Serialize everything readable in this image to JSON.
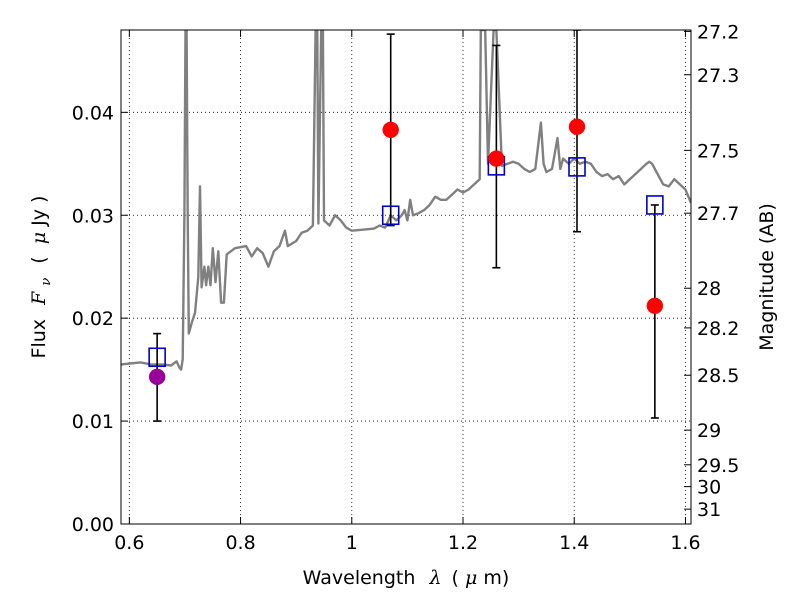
{
  "chart_data": {
    "type": "scatter",
    "xlabel": {
      "text": "Wavelength",
      "symbol": "λ",
      "unit_open": "(",
      "unit_mu": "μ",
      "unit_rest": "m)"
    },
    "ylabel": {
      "text": "Flux",
      "symbol": "F",
      "subscript": "ν",
      "unit_open": "(",
      "unit_mu": "μ",
      "unit_rest": "Jy )"
    },
    "y2label": "Magnitude (AB)",
    "xlim": [
      0.585,
      1.61
    ],
    "ylim": [
      0.0,
      0.048
    ],
    "x_ticks": [
      {
        "value": 0.6,
        "label": "0.6"
      },
      {
        "value": 0.8,
        "label": "0.8"
      },
      {
        "value": 1.0,
        "label": "1"
      },
      {
        "value": 1.2,
        "label": "1.2"
      },
      {
        "value": 1.4,
        "label": "1.4"
      },
      {
        "value": 1.6,
        "label": "1.6"
      }
    ],
    "y_ticks": [
      {
        "value": 0.0,
        "label": "0.00"
      },
      {
        "value": 0.01,
        "label": "0.01"
      },
      {
        "value": 0.02,
        "label": "0.02"
      },
      {
        "value": 0.03,
        "label": "0.03"
      },
      {
        "value": 0.04,
        "label": "0.04"
      }
    ],
    "y2_ticks": [
      {
        "value": 27.2,
        "label": "27.2"
      },
      {
        "value": 27.3,
        "label": "27.3"
      },
      {
        "value": 27.5,
        "label": "27.5"
      },
      {
        "value": 27.7,
        "label": "27.7"
      },
      {
        "value": 28.0,
        "label": "28"
      },
      {
        "value": 28.2,
        "label": "28.2"
      },
      {
        "value": 28.5,
        "label": "28.5"
      },
      {
        "value": 29.0,
        "label": "29"
      },
      {
        "value": 29.5,
        "label": "29.5"
      },
      {
        "value": 30.0,
        "label": "30"
      },
      {
        "value": 31.0,
        "label": "31"
      }
    ],
    "grid": true,
    "model_spectrum": {
      "color": "#808080",
      "points": [
        [
          0.585,
          0.0155
        ],
        [
          0.6,
          0.0156
        ],
        [
          0.62,
          0.0157
        ],
        [
          0.64,
          0.0155
        ],
        [
          0.66,
          0.0155
        ],
        [
          0.675,
          0.0154
        ],
        [
          0.685,
          0.0158
        ],
        [
          0.69,
          0.0152
        ],
        [
          0.693,
          0.015
        ],
        [
          0.696,
          0.016
        ],
        [
          0.699,
          0.03
        ],
        [
          0.701,
          0.048
        ],
        [
          0.703,
          0.048
        ],
        [
          0.705,
          0.03
        ],
        [
          0.707,
          0.0185
        ],
        [
          0.712,
          0.0195
        ],
        [
          0.718,
          0.0205
        ],
        [
          0.724,
          0.024
        ],
        [
          0.727,
          0.0328
        ],
        [
          0.73,
          0.023
        ],
        [
          0.735,
          0.025
        ],
        [
          0.738,
          0.0232
        ],
        [
          0.742,
          0.025
        ],
        [
          0.746,
          0.0232
        ],
        [
          0.75,
          0.0268
        ],
        [
          0.755,
          0.0235
        ],
        [
          0.76,
          0.0265
        ],
        [
          0.765,
          0.0215
        ],
        [
          0.77,
          0.0215
        ],
        [
          0.775,
          0.0262
        ],
        [
          0.79,
          0.0268
        ],
        [
          0.81,
          0.027
        ],
        [
          0.82,
          0.026
        ],
        [
          0.83,
          0.0268
        ],
        [
          0.84,
          0.0263
        ],
        [
          0.85,
          0.025
        ],
        [
          0.86,
          0.0265
        ],
        [
          0.87,
          0.027
        ],
        [
          0.88,
          0.0285
        ],
        [
          0.885,
          0.027
        ],
        [
          0.9,
          0.0275
        ],
        [
          0.91,
          0.0283
        ],
        [
          0.92,
          0.0285
        ],
        [
          0.93,
          0.029
        ],
        [
          0.935,
          0.048
        ],
        [
          0.938,
          0.048
        ],
        [
          0.94,
          0.0292
        ],
        [
          0.945,
          0.048
        ],
        [
          0.948,
          0.048
        ],
        [
          0.95,
          0.0295
        ],
        [
          0.96,
          0.029
        ],
        [
          0.97,
          0.03
        ],
        [
          0.98,
          0.0295
        ],
        [
          0.99,
          0.0288
        ],
        [
          1.0,
          0.0285
        ],
        [
          1.02,
          0.0286
        ],
        [
          1.04,
          0.0287
        ],
        [
          1.05,
          0.029
        ],
        [
          1.06,
          0.0288
        ],
        [
          1.07,
          0.03
        ],
        [
          1.08,
          0.0295
        ],
        [
          1.09,
          0.03
        ],
        [
          1.095,
          0.0305
        ],
        [
          1.1,
          0.0295
        ],
        [
          1.105,
          0.0315
        ],
        [
          1.11,
          0.03
        ],
        [
          1.12,
          0.0302
        ],
        [
          1.13,
          0.0305
        ],
        [
          1.14,
          0.031
        ],
        [
          1.15,
          0.0318
        ],
        [
          1.16,
          0.0315
        ],
        [
          1.17,
          0.0315
        ],
        [
          1.18,
          0.032
        ],
        [
          1.19,
          0.0325
        ],
        [
          1.2,
          0.0322
        ],
        [
          1.21,
          0.0325
        ],
        [
          1.22,
          0.033
        ],
        [
          1.23,
          0.0335
        ],
        [
          1.232,
          0.048
        ],
        [
          1.24,
          0.048
        ],
        [
          1.245,
          0.035
        ],
        [
          1.255,
          0.048
        ],
        [
          1.26,
          0.048
        ],
        [
          1.27,
          0.0348
        ],
        [
          1.28,
          0.035
        ],
        [
          1.29,
          0.0352
        ],
        [
          1.3,
          0.035
        ],
        [
          1.31,
          0.0345
        ],
        [
          1.32,
          0.0342
        ],
        [
          1.33,
          0.0345
        ],
        [
          1.34,
          0.039
        ],
        [
          1.345,
          0.035
        ],
        [
          1.35,
          0.0342
        ],
        [
          1.36,
          0.0345
        ],
        [
          1.37,
          0.0375
        ],
        [
          1.375,
          0.0345
        ],
        [
          1.38,
          0.0355
        ],
        [
          1.39,
          0.035
        ],
        [
          1.4,
          0.0355
        ],
        [
          1.41,
          0.035
        ],
        [
          1.42,
          0.0352
        ],
        [
          1.43,
          0.035
        ],
        [
          1.44,
          0.0342
        ],
        [
          1.45,
          0.0338
        ],
        [
          1.46,
          0.034
        ],
        [
          1.47,
          0.0335
        ],
        [
          1.48,
          0.0338
        ],
        [
          1.49,
          0.033
        ],
        [
          1.5,
          0.0335
        ],
        [
          1.51,
          0.034
        ],
        [
          1.52,
          0.0345
        ],
        [
          1.53,
          0.035
        ],
        [
          1.535,
          0.0352
        ],
        [
          1.54,
          0.035
        ],
        [
          1.55,
          0.034
        ],
        [
          1.56,
          0.033
        ],
        [
          1.57,
          0.0328
        ],
        [
          1.58,
          0.0335
        ],
        [
          1.59,
          0.033
        ],
        [
          1.6,
          0.0325
        ],
        [
          1.61,
          0.0312
        ]
      ]
    },
    "model_photometry": {
      "marker": "open-square",
      "color": "#0000cc",
      "points": [
        {
          "x": 0.65,
          "y": 0.0162
        },
        {
          "x": 1.07,
          "y": 0.03
        },
        {
          "x": 1.26,
          "y": 0.0348
        },
        {
          "x": 1.405,
          "y": 0.0347
        },
        {
          "x": 1.545,
          "y": 0.031
        }
      ]
    },
    "observed_photometry": [
      {
        "x": 0.65,
        "y": 0.0143,
        "err_low": 0.01,
        "err_high": 0.0185,
        "color": "#990099"
      },
      {
        "x": 1.07,
        "y": 0.0383,
        "err_low": 0.029,
        "err_high": 0.0476,
        "color": "#ff0000"
      },
      {
        "x": 1.26,
        "y": 0.0355,
        "err_low": 0.0249,
        "err_high": 0.0465,
        "color": "#ff0000"
      },
      {
        "x": 1.405,
        "y": 0.0386,
        "err_low": 0.0284,
        "err_high": 0.048,
        "color": "#ff0000"
      },
      {
        "x": 1.545,
        "y": 0.0212,
        "err_low": 0.0103,
        "err_high": 0.031,
        "color": "#ff0000"
      }
    ]
  }
}
